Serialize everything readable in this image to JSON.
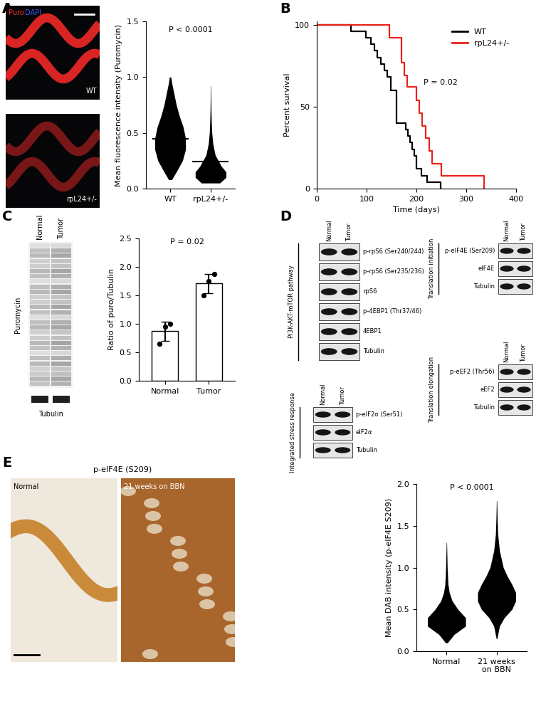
{
  "chart_data": [
    {
      "panel": "A",
      "type": "dot_distribution",
      "categories": [
        "WT",
        "rpL24+/-"
      ],
      "ylabel": "Mean fluorescence intensity (Puromycin)",
      "ylim": [
        0,
        1.5
      ],
      "yticks": [
        {
          "value": 0,
          "label": "0.0"
        },
        0.5,
        {
          "value": 1,
          "label": "1.0"
        },
        1.5
      ],
      "annotation": "P < 0.0001",
      "color": "#000000",
      "distributions": [
        {
          "levels": [
            0.08,
            0.15,
            0.25,
            0.35,
            0.45,
            0.55,
            0.65,
            0.75,
            0.85,
            0.95,
            1.0
          ],
          "density": [
            0.1,
            0.4,
            0.8,
            1.0,
            1.0,
            0.85,
            0.6,
            0.4,
            0.25,
            0.1,
            0.05
          ],
          "mean": 0.45
        },
        {
          "levels": [
            0.05,
            0.1,
            0.15,
            0.2,
            0.3,
            0.4,
            0.5,
            0.6,
            0.7,
            0.8,
            0.92
          ],
          "density": [
            0.6,
            1.0,
            1.0,
            0.7,
            0.3,
            0.15,
            0.08,
            0.05,
            0.03,
            0.02,
            0.01
          ],
          "mean": 0.24
        }
      ]
    },
    {
      "panel": "B",
      "type": "line",
      "line_style": "steps",
      "xlabel": "Time (days)",
      "ylabel": "Percent survival",
      "xlim": [
        0,
        400
      ],
      "xticks": [
        0,
        100,
        200,
        300,
        400
      ],
      "ylim": [
        0,
        102
      ],
      "yticks": [
        0,
        50,
        100
      ],
      "annotation": "P = 0.02",
      "legend": "upper right",
      "series": [
        {
          "name": "WT",
          "color": "#000000",
          "x": [
            0,
            68,
            98,
            108,
            115,
            122,
            128,
            135,
            142,
            148,
            160,
            178,
            183,
            187,
            191,
            196,
            200,
            210,
            222,
            248
          ],
          "values": [
            100,
            96,
            92,
            88,
            84,
            80,
            76,
            72,
            68,
            60,
            40,
            36,
            32,
            28,
            24,
            20,
            12,
            8,
            4,
            0
          ]
        },
        {
          "name": "rpL24+/-",
          "color": "#e8231a",
          "x": [
            0,
            145,
            170,
            175,
            182,
            200,
            205,
            212,
            218,
            225,
            232,
            250,
            335
          ],
          "values": [
            100,
            92,
            77,
            69,
            62,
            54,
            46,
            38,
            31,
            23,
            15,
            8,
            0
          ]
        }
      ]
    },
    {
      "panel": "C",
      "type": "bar",
      "categories": [
        "Normal",
        "Tumor"
      ],
      "ylabel": "Ratio of puro/Tubulin",
      "ylim": [
        0,
        2.5
      ],
      "yticks": [
        {
          "value": 0,
          "label": "0.0"
        },
        0.5,
        {
          "value": 1,
          "label": "1.0"
        },
        1.5,
        {
          "value": 2,
          "label": "2.0"
        },
        2.5
      ],
      "annotation": "P = 0.02",
      "color": "#ffffff",
      "values": [
        0.87,
        1.71
      ],
      "errors": [
        0.17,
        0.17
      ],
      "points": [
        [
          0.65,
          0.95,
          1.0
        ],
        [
          1.5,
          1.75,
          1.87
        ]
      ]
    },
    {
      "panel": "E",
      "type": "dot_distribution",
      "categories": [
        "Normal",
        "21 weeks on BBN"
      ],
      "ylabel": "Mean DAB intensity (p-eIF4E S209)",
      "ylim": [
        0,
        2.0
      ],
      "yticks": [
        {
          "value": 0,
          "label": "0.0"
        },
        0.5,
        {
          "value": 1,
          "label": "1.0"
        },
        1.5,
        {
          "value": 2,
          "label": "2.0"
        }
      ],
      "annotation": "P < 0.0001",
      "color": "#000000",
      "distributions": [
        {
          "levels": [
            0.1,
            0.2,
            0.3,
            0.4,
            0.5,
            0.6,
            0.7,
            0.8,
            1.0,
            1.2,
            1.3
          ],
          "density": [
            0.05,
            0.4,
            1.0,
            1.0,
            0.6,
            0.3,
            0.15,
            0.08,
            0.04,
            0.02,
            0.01
          ]
        },
        {
          "levels": [
            0.15,
            0.3,
            0.4,
            0.5,
            0.6,
            0.7,
            0.8,
            0.9,
            1.0,
            1.2,
            1.4,
            1.6,
            1.8
          ],
          "density": [
            0.02,
            0.15,
            0.4,
            0.8,
            1.0,
            1.0,
            0.8,
            0.55,
            0.35,
            0.15,
            0.06,
            0.03,
            0.01
          ]
        }
      ]
    }
  ],
  "image_panels": {
    "A": {
      "channels": [
        {
          "name": "Puro",
          "color": "#ff2a2a"
        },
        {
          "name": "DAPI",
          "color": "#3a5bff"
        }
      ],
      "labels": [
        "WT",
        "rpL24+/-"
      ]
    },
    "E": {
      "title": "p-eIF4E (S209)",
      "labels": [
        "Normal",
        "21 weeks on BBN"
      ]
    }
  },
  "blot_panels": {
    "C": {
      "lanes": [
        "Normal",
        "Tumor"
      ],
      "rows": [
        "Puromycin",
        "Tubulin"
      ]
    },
    "D": {
      "panel": "D",
      "lanes": [
        "Normal",
        "Tumor"
      ],
      "groups": [
        {
          "title": "PI3K-AKT-mTOR pathway",
          "rows": [
            "p-rpS6 (Ser240/244)",
            "p-rpS6 (Ser235/236)",
            "rpS6",
            "p-4EBP1 (Thr37/46)",
            "4EBP1",
            "Tubulin"
          ]
        },
        {
          "title": "Translation initiation",
          "rows": [
            "p-eIF4E (Ser209)",
            "eIF4E",
            "Tubulin"
          ]
        },
        {
          "title": "Integrated stress response",
          "rows": [
            "p-eIF2α (Ser51)",
            "eIF2α",
            "Tubulin"
          ]
        },
        {
          "title": "Translation elongation",
          "rows": [
            "p-eEF2 (Thr56)",
            "eEF2",
            "Tubulin"
          ]
        }
      ]
    }
  }
}
